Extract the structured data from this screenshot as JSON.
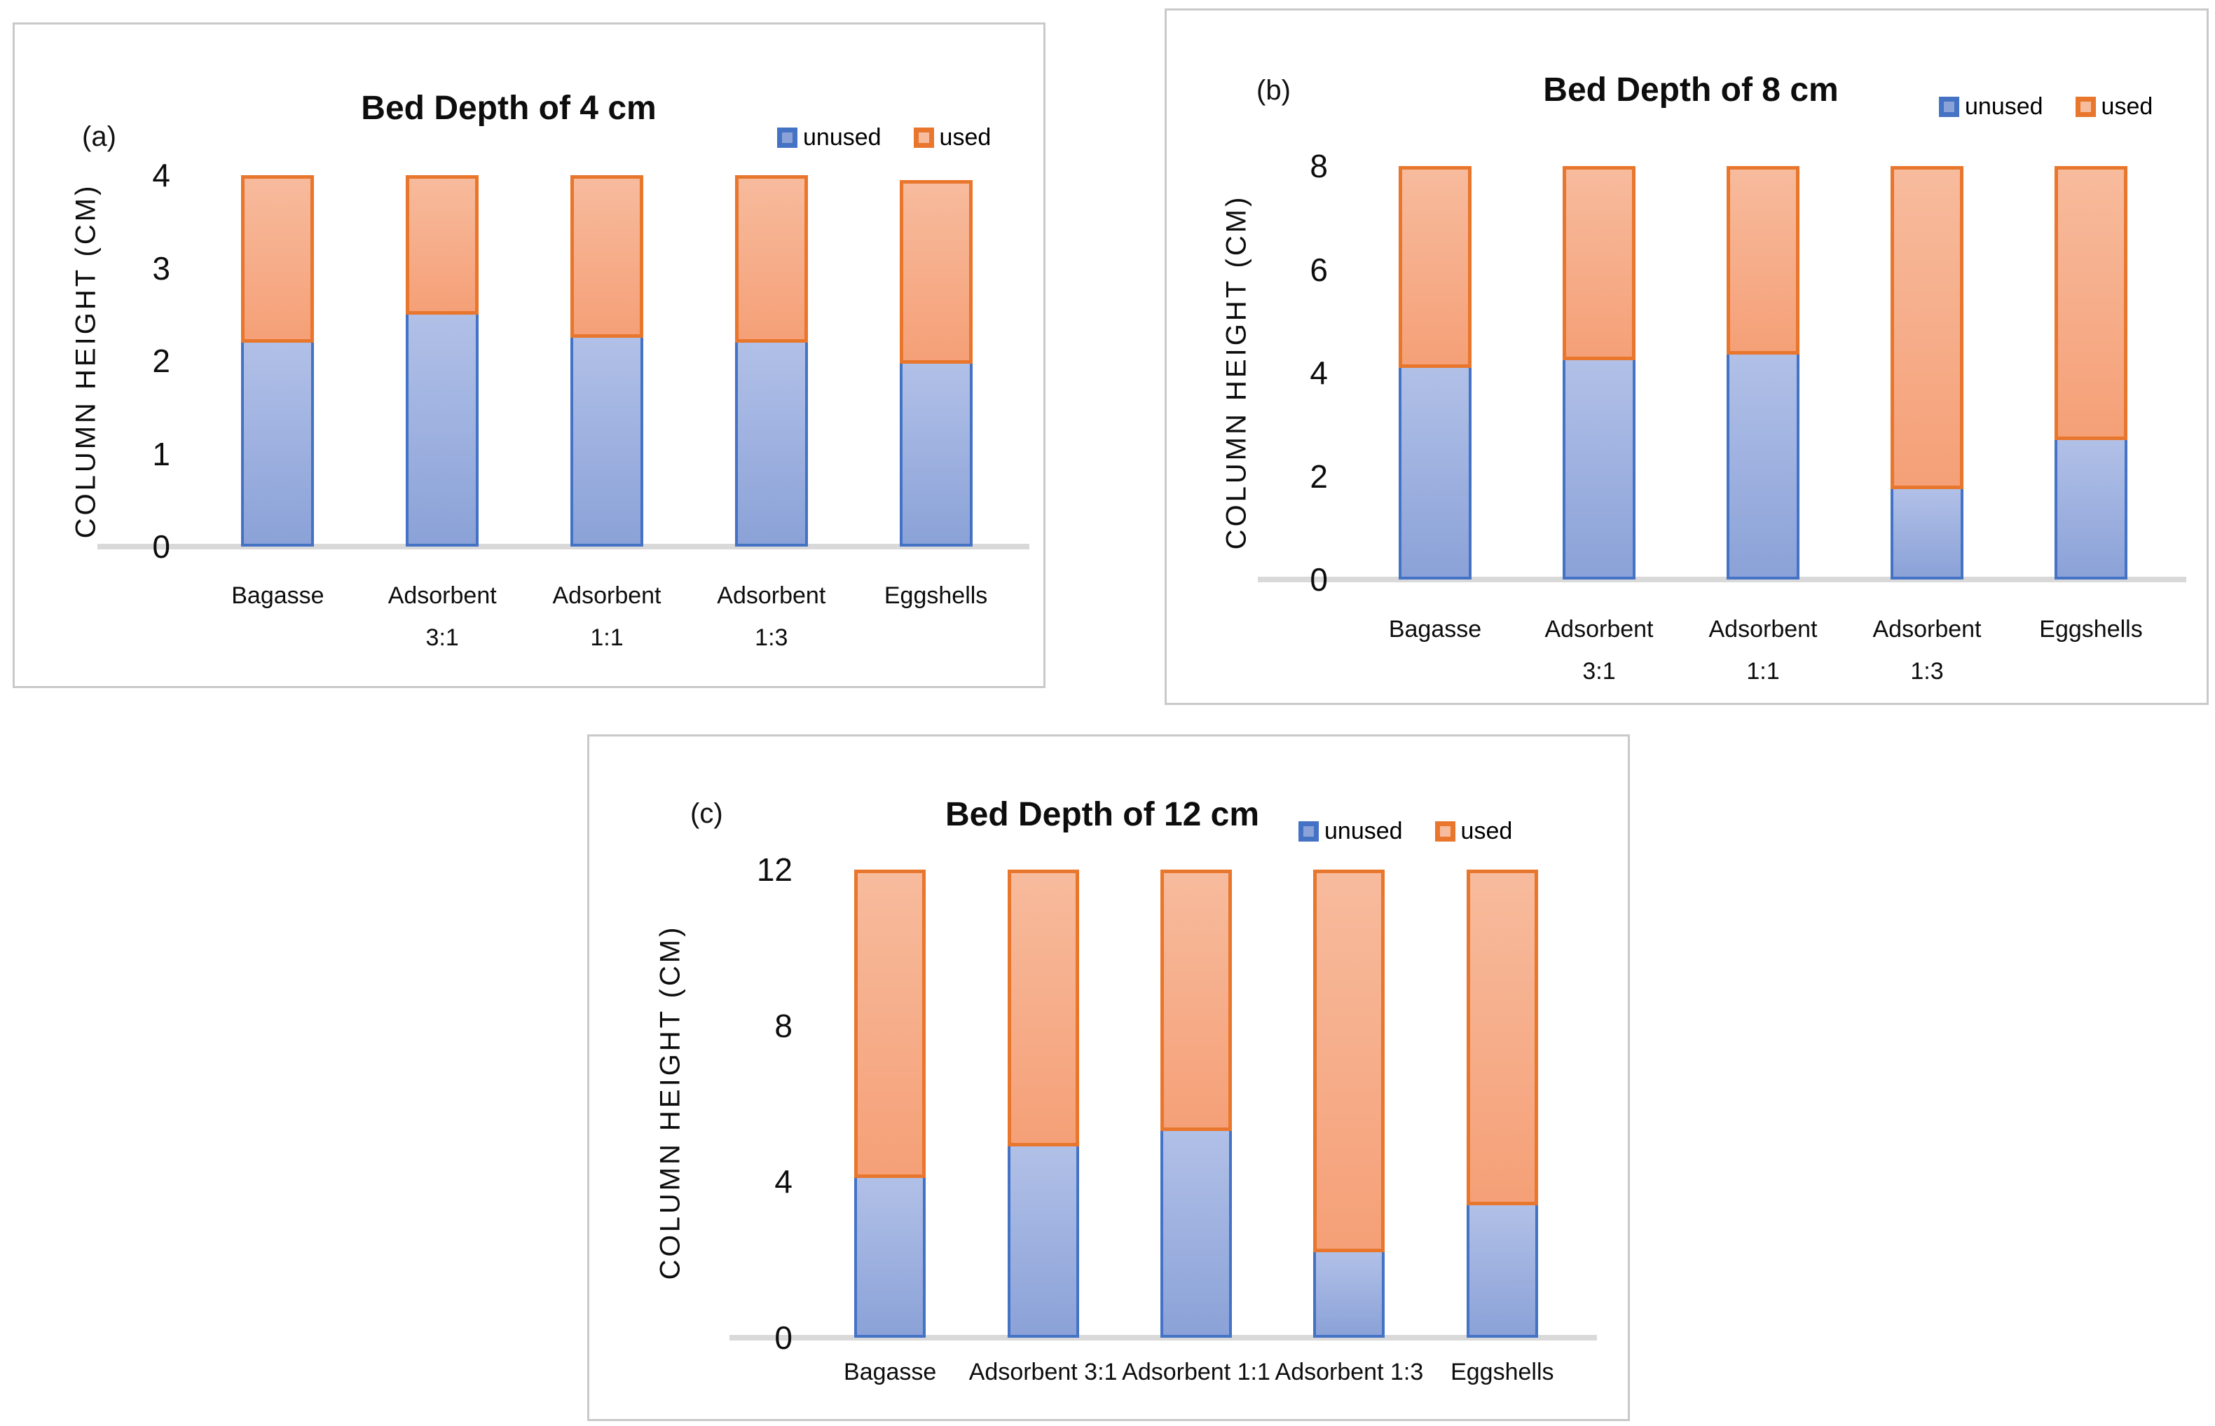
{
  "colors": {
    "unused_border": "#4472c4",
    "unused_fill_top": "#b1c0e7",
    "unused_fill_bottom": "#8ba2d8",
    "used_border": "#e8762c",
    "used_fill_top": "#f7bb9d",
    "used_fill_bottom": "#f5a077",
    "baseline": "#d9d9d9",
    "panel_border": "#c9c9c9"
  },
  "legend": {
    "unused": "unused",
    "used": "used"
  },
  "chart_data": [
    {
      "type": "bar",
      "stacked": true,
      "panel_label": "(a)",
      "title": "Bed Depth of 4 cm",
      "ylabel": "COLUMN HEIGHT (CM)",
      "xlabel": "",
      "ylim": [
        0,
        4
      ],
      "yticks": [
        0,
        1,
        2,
        3,
        4
      ],
      "grid": false,
      "legend_position": "top-right",
      "categories": [
        "Bagasse",
        "Adsorbent 3:1",
        "Adsorbent 1:1",
        "Adsorbent 1:3",
        "Eggshells"
      ],
      "series": [
        {
          "name": "unused",
          "values": [
            2.2,
            2.5,
            2.25,
            2.2,
            1.97
          ]
        },
        {
          "name": "used",
          "values": [
            1.8,
            1.5,
            1.75,
            1.8,
            1.98
          ]
        }
      ]
    },
    {
      "type": "bar",
      "stacked": true,
      "panel_label": "(b)",
      "title": "Bed Depth of 8 cm",
      "ylabel": "COLUMN HEIGHT (CM)",
      "xlabel": "",
      "ylim": [
        0,
        8
      ],
      "yticks": [
        0,
        2,
        4,
        6,
        8
      ],
      "grid": false,
      "legend_position": "top-right",
      "categories": [
        "Bagasse",
        "Adsorbent 3:1",
        "Adsorbent 1:1",
        "Adsorbent 1:3",
        "Eggshells"
      ],
      "series": [
        {
          "name": "unused",
          "values": [
            4.1,
            4.25,
            4.35,
            1.75,
            2.7
          ]
        },
        {
          "name": "used",
          "values": [
            3.9,
            3.75,
            3.65,
            6.25,
            5.3
          ]
        }
      ]
    },
    {
      "type": "bar",
      "stacked": true,
      "panel_label": "(c)",
      "title": "Bed Depth of 12 cm",
      "ylabel": "COLUMN HEIGHT (CM)",
      "xlabel": "",
      "ylim": [
        0,
        12
      ],
      "yticks": [
        0,
        4,
        8,
        12
      ],
      "grid": false,
      "legend_position": "top-right",
      "categories": [
        "Bagasse",
        "Adsorbent 3:1",
        "Adsorbent 1:1",
        "Adsorbent 1:3",
        "Eggshells"
      ],
      "series": [
        {
          "name": "unused",
          "values": [
            4.1,
            4.9,
            5.3,
            2.2,
            3.4
          ]
        },
        {
          "name": "used",
          "values": [
            7.9,
            7.1,
            6.7,
            9.8,
            8.6
          ]
        }
      ]
    }
  ]
}
